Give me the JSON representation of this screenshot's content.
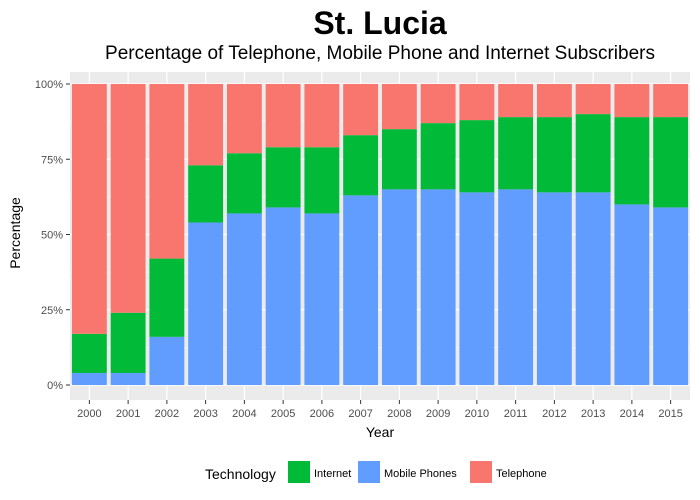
{
  "chart_data": {
    "type": "bar",
    "stacked": true,
    "normalized": true,
    "title": "St. Lucia",
    "subtitle": "Percentage of Telephone, Mobile Phone and Internet Subscribers",
    "xlabel": "Year",
    "ylabel": "Percentage",
    "ylim": [
      0,
      100
    ],
    "yticks": [
      "0%",
      "25%",
      "50%",
      "75%",
      "100%"
    ],
    "ytick_values": [
      0,
      25,
      50,
      75,
      100
    ],
    "categories": [
      "2000",
      "2001",
      "2002",
      "2003",
      "2004",
      "2005",
      "2006",
      "2007",
      "2008",
      "2009",
      "2010",
      "2011",
      "2012",
      "2013",
      "2014",
      "2015"
    ],
    "series": [
      {
        "name": "Mobile Phones",
        "color": "#619CFF",
        "values": [
          4,
          4,
          16,
          54,
          57,
          59,
          57,
          63,
          65,
          65,
          64,
          65,
          64,
          64,
          60,
          59
        ]
      },
      {
        "name": "Internet",
        "color": "#00BA38",
        "values": [
          13,
          20,
          26,
          19,
          20,
          20,
          22,
          20,
          20,
          22,
          24,
          24,
          25,
          26,
          29,
          30
        ]
      },
      {
        "name": "Telephone",
        "color": "#F8766D",
        "values": [
          83,
          76,
          58,
          27,
          23,
          21,
          21,
          17,
          15,
          13,
          12,
          11,
          11,
          10,
          11,
          11
        ]
      }
    ],
    "legend": {
      "title": "Technology",
      "position": "bottom",
      "entries": [
        {
          "name": "Internet",
          "color": "#00BA38"
        },
        {
          "name": "Mobile Phones",
          "color": "#619CFF"
        },
        {
          "name": "Telephone",
          "color": "#F8766D"
        }
      ]
    },
    "grid": true,
    "panel_background": "#EBEBEB"
  }
}
